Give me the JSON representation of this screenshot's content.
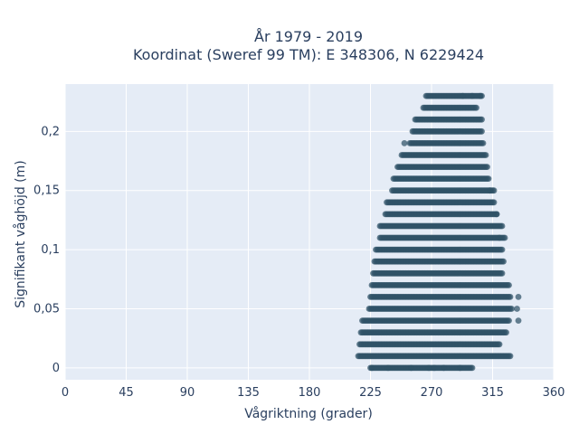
{
  "chart_data": {
    "type": "scatter",
    "title": [
      "År 1979 - 2019",
      "Koordinat (Sweref 99 TM): E 348306, N 6229424"
    ],
    "xlabel": "Vågriktning (grader)",
    "ylabel": "Signifikant våghöjd (m)",
    "xlim": [
      0,
      360
    ],
    "ylim": [
      -0.01,
      0.24
    ],
    "xticks": [
      0,
      45,
      90,
      135,
      180,
      225,
      270,
      315,
      360
    ],
    "xtick_labels": [
      "0",
      "45",
      "90",
      "135",
      "180",
      "225",
      "270",
      "315",
      "360"
    ],
    "yticks": [
      0,
      0.05,
      0.1,
      0.15,
      0.2
    ],
    "ytick_labels": [
      "0",
      "0,05",
      "0,1",
      "0,15",
      "0,2"
    ],
    "grid": true,
    "legend": "none",
    "marker_color": "#2f5266",
    "plot_bg": "#e5ecf6",
    "y_levels": [
      0.0,
      0.01,
      0.02,
      0.03,
      0.04,
      0.05,
      0.06,
      0.07,
      0.08,
      0.09,
      0.1,
      0.11,
      0.12,
      0.13,
      0.14,
      0.15,
      0.16,
      0.17,
      0.18,
      0.19,
      0.2,
      0.21,
      0.22,
      0.23
    ],
    "x_min_per_level": [
      226,
      216,
      217,
      218,
      219,
      224,
      225,
      226,
      227,
      228,
      229,
      232,
      232,
      236,
      237,
      241,
      242,
      245,
      248,
      254,
      256,
      258,
      264,
      266
    ],
    "x_max_per_level": [
      300,
      327,
      320,
      325,
      327,
      329,
      328,
      326,
      322,
      323,
      322,
      324,
      322,
      318,
      316,
      316,
      312,
      311,
      310,
      308,
      307,
      307,
      303,
      307
    ],
    "isolated_points": [
      {
        "x": 225,
        "y": 0.0
      },
      {
        "x": 226,
        "y": 0.0
      },
      {
        "x": 238,
        "y": 0.0
      },
      {
        "x": 255,
        "y": 0.0
      },
      {
        "x": 268,
        "y": 0.0
      },
      {
        "x": 272,
        "y": 0.0
      },
      {
        "x": 279,
        "y": 0.0
      },
      {
        "x": 291,
        "y": 0.0
      },
      {
        "x": 328,
        "y": 0.01
      },
      {
        "x": 334,
        "y": 0.04
      },
      {
        "x": 334,
        "y": 0.06
      },
      {
        "x": 333,
        "y": 0.05
      },
      {
        "x": 327,
        "y": 0.07
      },
      {
        "x": 320,
        "y": 0.11
      },
      {
        "x": 318,
        "y": 0.13
      },
      {
        "x": 250,
        "y": 0.19
      },
      {
        "x": 313,
        "y": 0.15
      },
      {
        "x": 293,
        "y": 0.23
      },
      {
        "x": 300,
        "y": 0.23
      },
      {
        "x": 306,
        "y": 0.23
      }
    ]
  }
}
